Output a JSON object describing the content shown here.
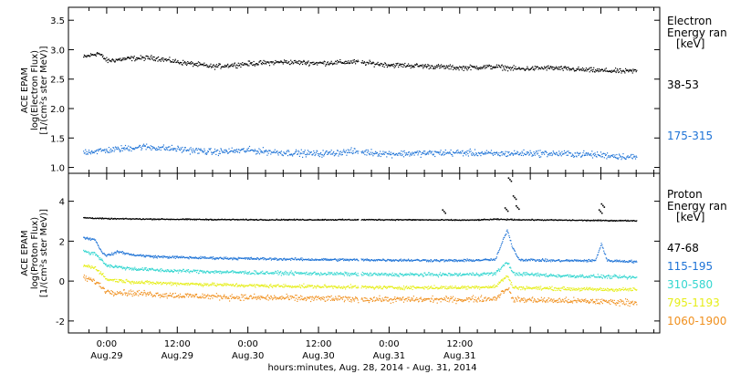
{
  "chart_data": [
    {
      "type": "scatter",
      "panel": "electron",
      "ylabel": [
        "ACE EPAM",
        "log(Electron Flux)",
        "[1/(cm²s ster MeV)]"
      ],
      "ylim": [
        0.9,
        3.72
      ],
      "yticks": [
        {
          "value": 1.0,
          "label": "1.0"
        },
        {
          "value": 1.5,
          "label": "1.5"
        },
        {
          "value": 2.0,
          "label": "2.0"
        },
        {
          "value": 2.5,
          "label": "2.5"
        },
        {
          "value": 3.0,
          "label": "3.0"
        },
        {
          "value": 3.5,
          "label": "3.5"
        }
      ],
      "legend_title": [
        "Electron",
        "Energy ran",
        "[keV]"
      ],
      "data_gap_hours": [
        [
          42.8,
          43.2
        ]
      ],
      "series": [
        {
          "name": "38-53",
          "color": "#000000",
          "spread": 0.06,
          "points": [
            [
              -4.0,
              2.88
            ],
            [
              -1.5,
              2.95
            ],
            [
              0.0,
              2.82
            ],
            [
              4.0,
              2.86
            ],
            [
              8.0,
              2.87
            ],
            [
              12.0,
              2.8
            ],
            [
              18.0,
              2.72
            ],
            [
              24.0,
              2.77
            ],
            [
              30.0,
              2.8
            ],
            [
              36.0,
              2.78
            ],
            [
              42.0,
              2.8
            ],
            [
              48.0,
              2.75
            ],
            [
              54.0,
              2.73
            ],
            [
              60.0,
              2.7
            ],
            [
              66.0,
              2.72
            ],
            [
              70.0,
              2.68
            ],
            [
              75.0,
              2.7
            ],
            [
              82.0,
              2.66
            ],
            [
              88.0,
              2.64
            ],
            [
              90.0,
              2.65
            ]
          ]
        },
        {
          "name": "175-315",
          "color": "#1e73d6",
          "spread": 0.08,
          "points": [
            [
              -4.0,
              1.27
            ],
            [
              0.0,
              1.3
            ],
            [
              6.0,
              1.36
            ],
            [
              12.0,
              1.32
            ],
            [
              18.0,
              1.27
            ],
            [
              24.0,
              1.3
            ],
            [
              30.0,
              1.26
            ],
            [
              36.0,
              1.24
            ],
            [
              42.0,
              1.28
            ],
            [
              48.0,
              1.24
            ],
            [
              54.0,
              1.25
            ],
            [
              60.0,
              1.26
            ],
            [
              66.0,
              1.24
            ],
            [
              72.0,
              1.25
            ],
            [
              78.0,
              1.24
            ],
            [
              84.0,
              1.22
            ],
            [
              90.0,
              1.18
            ]
          ]
        }
      ]
    },
    {
      "type": "scatter",
      "panel": "proton",
      "ylabel": [
        "ACE EPAM",
        "log(Proton Flux)",
        "[1/(cm²s ster MeV)]"
      ],
      "ylim": [
        -2.6,
        5.4
      ],
      "yticks": [
        {
          "value": -2,
          "label": "-2"
        },
        {
          "value": 0,
          "label": "0"
        },
        {
          "value": 2,
          "label": "2"
        },
        {
          "value": 4,
          "label": "4"
        }
      ],
      "legend_title": [
        "Proton",
        "Energy ran",
        "[keV]"
      ],
      "data_gap_hours": [
        [
          42.8,
          43.2
        ]
      ],
      "series": [
        {
          "name": "47-68",
          "color": "#000000",
          "spread": 0.04,
          "points": [
            [
              -4.0,
              3.2
            ],
            [
              0.0,
              3.15
            ],
            [
              12.0,
              3.12
            ],
            [
              24.0,
              3.1
            ],
            [
              36.0,
              3.1
            ],
            [
              48.0,
              3.1
            ],
            [
              62.0,
              3.08
            ],
            [
              66.0,
              3.12
            ],
            [
              70.0,
              3.1
            ],
            [
              84.0,
              3.06
            ],
            [
              90.0,
              3.05
            ]
          ],
          "spikes": [
            [
              57.0,
              3.6
            ],
            [
              67.6,
              3.7
            ],
            [
              68.2,
              5.2
            ],
            [
              69.0,
              4.3
            ],
            [
              69.5,
              3.8
            ],
            [
              83.6,
              3.6
            ],
            [
              84.0,
              3.9
            ]
          ]
        },
        {
          "name": "115-195",
          "color": "#1e73d6",
          "spread": 0.09,
          "points": [
            [
              -4.0,
              2.2
            ],
            [
              -2.0,
              2.1
            ],
            [
              -1.0,
              1.5
            ],
            [
              0.0,
              1.3
            ],
            [
              2.0,
              1.5
            ],
            [
              4.0,
              1.35
            ],
            [
              8.0,
              1.25
            ],
            [
              14.0,
              1.2
            ],
            [
              24.0,
              1.15
            ],
            [
              36.0,
              1.1
            ],
            [
              48.0,
              1.08
            ],
            [
              60.0,
              1.05
            ],
            [
              66.0,
              1.1
            ],
            [
              68.0,
              2.6
            ],
            [
              68.8,
              1.8
            ],
            [
              70.0,
              1.1
            ],
            [
              76.0,
              1.05
            ],
            [
              83.0,
              1.05
            ],
            [
              84.0,
              1.9
            ],
            [
              85.0,
              1.05
            ],
            [
              90.0,
              1.0
            ]
          ]
        },
        {
          "name": "310-580",
          "color": "#33d6d0",
          "spread": 0.13,
          "points": [
            [
              -4.0,
              1.5
            ],
            [
              -2.0,
              1.4
            ],
            [
              0.0,
              0.8
            ],
            [
              4.0,
              0.65
            ],
            [
              10.0,
              0.55
            ],
            [
              24.0,
              0.45
            ],
            [
              36.0,
              0.4
            ],
            [
              48.0,
              0.35
            ],
            [
              60.0,
              0.35
            ],
            [
              66.0,
              0.4
            ],
            [
              68.0,
              1.0
            ],
            [
              69.0,
              0.4
            ],
            [
              76.0,
              0.3
            ],
            [
              84.0,
              0.25
            ],
            [
              90.0,
              0.2
            ]
          ]
        },
        {
          "name": "795-1193",
          "color": "#e6ee1a",
          "spread": 0.13,
          "points": [
            [
              -4.0,
              0.8
            ],
            [
              -2.0,
              0.7
            ],
            [
              0.0,
              0.1
            ],
            [
              6.0,
              -0.05
            ],
            [
              12.0,
              -0.1
            ],
            [
              24.0,
              -0.2
            ],
            [
              36.0,
              -0.25
            ],
            [
              48.0,
              -0.3
            ],
            [
              60.0,
              -0.3
            ],
            [
              66.0,
              -0.25
            ],
            [
              68.0,
              0.3
            ],
            [
              69.0,
              -0.3
            ],
            [
              76.0,
              -0.35
            ],
            [
              84.0,
              -0.4
            ],
            [
              90.0,
              -0.4
            ]
          ]
        },
        {
          "name": "1060-1900",
          "color": "#f0901e",
          "spread": 0.22,
          "points": [
            [
              -4.0,
              0.2
            ],
            [
              -2.0,
              0.0
            ],
            [
              0.0,
              -0.5
            ],
            [
              6.0,
              -0.6
            ],
            [
              12.0,
              -0.7
            ],
            [
              24.0,
              -0.8
            ],
            [
              36.0,
              -0.85
            ],
            [
              48.0,
              -0.9
            ],
            [
              60.0,
              -0.9
            ],
            [
              66.0,
              -0.85
            ],
            [
              68.0,
              -0.3
            ],
            [
              69.0,
              -0.9
            ],
            [
              76.0,
              -0.95
            ],
            [
              84.0,
              -1.0
            ],
            [
              90.0,
              -1.05
            ]
          ]
        }
      ]
    }
  ],
  "x_axis": {
    "range_hours": [
      -6.5,
      94.0
    ],
    "ticks": [
      {
        "hour": 0,
        "time": "0:00",
        "date": "Aug.29"
      },
      {
        "hour": 12,
        "time": "12:00",
        "date": "Aug.29"
      },
      {
        "hour": 24,
        "time": "0:00",
        "date": "Aug.30"
      },
      {
        "hour": 36,
        "time": "12:00",
        "date": "Aug.30"
      },
      {
        "hour": 48,
        "time": "0:00",
        "date": "Aug.31"
      },
      {
        "hour": 60,
        "time": "12:00",
        "date": "Aug.31"
      }
    ],
    "label": "hours:minutes, Aug. 28, 2014 - Aug. 31, 2014"
  }
}
